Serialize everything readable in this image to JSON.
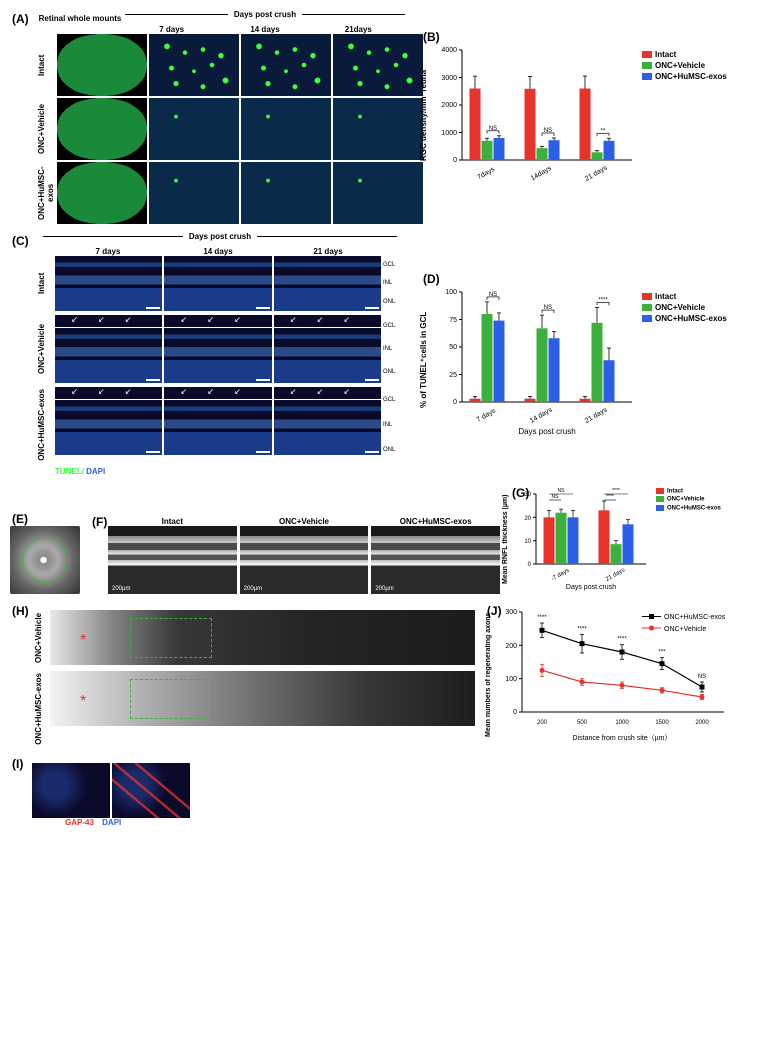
{
  "colors": {
    "intact": "#e8332c",
    "vehicle": "#3cb03c",
    "exos": "#2c5ee8",
    "line_vehicle": "#e8332c",
    "line_exos": "#000000"
  },
  "panelA": {
    "label": "(A)",
    "top_header": "Days post crush",
    "col_labels": [
      "Retinal whole mounts",
      "7 days",
      "14 days",
      "21days"
    ],
    "row_labels": [
      "Intact",
      "ONC+Vehicle",
      "ONC+HuMSC-exos"
    ]
  },
  "panelB": {
    "label": "(B)",
    "type": "bar",
    "ylabel": "RGC density/mm² retina",
    "ylim": [
      0,
      4000
    ],
    "ytick_step": 1000,
    "categories": [
      "7days",
      "14days",
      "21 days"
    ],
    "groups": [
      "Intact",
      "ONC+Vehicle",
      "ONC+HuMSC-exos"
    ],
    "values": {
      "Intact": [
        2600,
        2590,
        2600
      ],
      "ONC+Vehicle": [
        700,
        430,
        280
      ],
      "ONC+HuMSC-exos": [
        800,
        720,
        700
      ]
    },
    "error": {
      "Intact": [
        450,
        450,
        450
      ],
      "ONC+Vehicle": [
        90,
        70,
        60
      ],
      "ONC+HuMSC-exos": [
        80,
        80,
        90
      ]
    },
    "sig": [
      "NS",
      "NS",
      "**"
    ]
  },
  "panelC": {
    "label": "(C)",
    "top_header": "Days post crush",
    "col_labels": [
      "7 days",
      "14 days",
      "21 days"
    ],
    "row_labels": [
      "Intact",
      "ONC+Vehicle",
      "ONC+HuMSC-exos"
    ],
    "layer_labels": [
      "GCL",
      "INL",
      "ONL"
    ],
    "stain_label": "TUNEL/ DAPI"
  },
  "panelD": {
    "label": "(D)",
    "type": "bar",
    "ylabel": "% of TUNEL⁺cells in GCL",
    "xlabel": "Days post crush",
    "ylim": [
      0,
      110
    ],
    "yticks": [
      0,
      25,
      50,
      75,
      100
    ],
    "categories": [
      "7 days",
      "14 days",
      "21 days"
    ],
    "groups": [
      "Intact",
      "ONC+Vehicle",
      "ONC+HuMSC-exos"
    ],
    "values": {
      "Intact": [
        3,
        3,
        3
      ],
      "ONC+Vehicle": [
        80,
        67,
        72
      ],
      "ONC+HuMSC-exos": [
        74,
        58,
        38
      ]
    },
    "error": {
      "Intact": [
        2,
        2,
        2
      ],
      "ONC+Vehicle": [
        11,
        12,
        14
      ],
      "ONC+HuMSC-exos": [
        7,
        6,
        11
      ]
    },
    "sig": [
      "NS",
      "NS",
      "****"
    ]
  },
  "panelE": {
    "label": "(E)"
  },
  "panelF": {
    "label": "(F)",
    "col_labels": [
      "Intact",
      "ONC+Vehicle",
      "ONC+HuMSC-exos"
    ],
    "scalebar": "200µm"
  },
  "panelG": {
    "label": "(G)",
    "type": "bar",
    "ylabel": "Mean RNFL thickness (µm)",
    "xlabel": "Days post crush",
    "ylim": [
      0,
      30
    ],
    "ytick_step": 10,
    "categories": [
      "-7 days",
      "21 days"
    ],
    "groups": [
      "Intact",
      "ONC+Vehicle",
      "ONC+HuMSC-exos"
    ],
    "values": {
      "Intact": [
        20,
        23
      ],
      "ONC+Vehicle": [
        22,
        8.5
      ],
      "ONC+HuMSC-exos": [
        20,
        17
      ]
    },
    "error": {
      "Intact": [
        3,
        4
      ],
      "ONC+Vehicle": [
        1.5,
        1.5
      ],
      "ONC+HuMSC-exos": [
        3,
        2
      ]
    },
    "sig_top": [
      "NS",
      "NS",
      "****",
      "****"
    ]
  },
  "panelH": {
    "label": "(H)",
    "row_labels": [
      "ONC+Vehicle",
      "ONC+HuMSC-exos"
    ]
  },
  "panelI": {
    "label": "(I)",
    "stain_label_red": "GAP-43",
    "stain_label_blue": "DAPI"
  },
  "panelJ": {
    "label": "(J)",
    "type": "line",
    "ylabel": "Mean numbers of regenerating axons",
    "xlabel": "Distance from crush site（µm）",
    "ylim": [
      0,
      300
    ],
    "ytick_step": 100,
    "x_categories": [
      "200",
      "500",
      "1000",
      "1500",
      "2000"
    ],
    "series": [
      {
        "name": "ONC+HuMSC-exos",
        "color": "#000000",
        "values": [
          245,
          205,
          180,
          145,
          75
        ],
        "error": [
          22,
          28,
          22,
          18,
          15
        ]
      },
      {
        "name": "ONC+Vehicle",
        "color": "#e8332c",
        "values": [
          125,
          90,
          80,
          65,
          45
        ],
        "error": [
          18,
          10,
          10,
          8,
          8
        ]
      }
    ],
    "sig": [
      "****",
      "****",
      "****",
      "***",
      "NS"
    ]
  }
}
